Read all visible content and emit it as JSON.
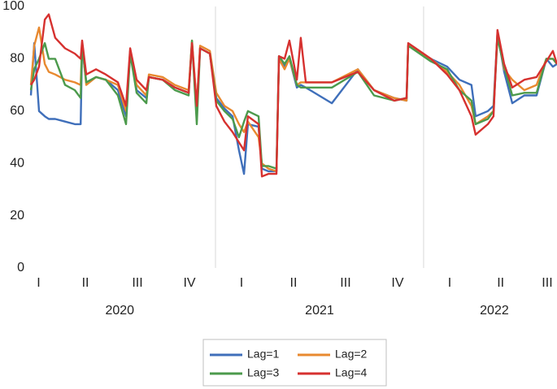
{
  "chart_data": {
    "type": "line",
    "x": [
      2020.113,
      2020.129,
      2020.152,
      2020.18,
      2020.199,
      2020.23,
      2020.277,
      2020.324,
      2020.352,
      2020.359,
      2020.379,
      2020.426,
      2020.473,
      2020.531,
      2020.57,
      2020.59,
      2020.621,
      2020.668,
      2020.68,
      2020.746,
      2020.805,
      2020.871,
      2020.887,
      2020.91,
      2020.926,
      2020.973,
      2021.004,
      2021.043,
      2021.082,
      2021.113,
      2021.137,
      2021.156,
      2021.207,
      2021.223,
      2021.254,
      2021.293,
      2021.305,
      2021.332,
      2021.355,
      2021.391,
      2021.41,
      2021.434,
      2021.559,
      2021.684,
      2021.762,
      2021.859,
      2021.918,
      2021.926,
      2022.035,
      2022.113,
      2022.172,
      2022.23,
      2022.25,
      2022.309,
      2022.336,
      2022.355,
      2022.387,
      2022.426,
      2022.484,
      2022.543,
      2022.59,
      2022.621,
      2022.641
    ],
    "series": [
      {
        "name": "Lag=1",
        "color": "#3f6fba",
        "values": [
          66,
          86,
          60,
          58,
          57,
          57,
          56,
          55,
          55,
          85,
          71,
          73,
          72,
          68,
          58,
          83,
          68,
          65,
          73,
          72,
          69,
          67,
          86,
          60,
          84,
          82,
          65,
          61,
          58,
          45,
          36,
          55,
          54,
          38,
          37,
          37,
          81,
          77,
          80,
          69,
          70,
          69,
          63,
          76,
          68,
          65,
          64,
          85,
          80,
          77,
          72,
          70,
          58,
          60,
          62,
          90,
          75,
          63,
          66,
          66,
          80,
          77,
          78
        ]
      },
      {
        "name": "Lag=2",
        "color": "#e8892f",
        "values": [
          70,
          85,
          92,
          78,
          75,
          74,
          72,
          71,
          70,
          86,
          70,
          73,
          72,
          70,
          60,
          83,
          70,
          66,
          74,
          73,
          70,
          68,
          87,
          62,
          85,
          83,
          67,
          62,
          60,
          55,
          52,
          56,
          50,
          40,
          38,
          37,
          80,
          76,
          80,
          70,
          71,
          71,
          71,
          76,
          68,
          65,
          64,
          85,
          80,
          75,
          70,
          62,
          55,
          58,
          60,
          90,
          76,
          72,
          68,
          70,
          80,
          80,
          78
        ]
      },
      {
        "name": "Lag=3",
        "color": "#4c9a4c",
        "values": [
          68,
          76,
          80,
          86,
          80,
          80,
          70,
          68,
          65,
          86,
          71,
          73,
          72,
          66,
          55,
          82,
          67,
          63,
          73,
          72,
          68,
          66,
          87,
          55,
          84,
          82,
          64,
          60,
          57,
          50,
          56,
          60,
          58,
          39,
          39,
          38,
          81,
          78,
          81,
          70,
          69,
          69,
          69,
          75,
          66,
          64,
          65,
          85,
          79,
          76,
          68,
          64,
          55,
          57,
          60,
          88,
          77,
          66,
          67,
          67,
          80,
          80,
          78
        ]
      },
      {
        "name": "Lag=4",
        "color": "#d6312f",
        "values": [
          70,
          72,
          77,
          95,
          97,
          88,
          84,
          82,
          80,
          87,
          74,
          76,
          74,
          71,
          62,
          84,
          72,
          68,
          73,
          72,
          69,
          67,
          86,
          62,
          84,
          82,
          62,
          56,
          52,
          48,
          45,
          58,
          55,
          35,
          36,
          36,
          81,
          80,
          87,
          72,
          88,
          71,
          71,
          75,
          68,
          64,
          65,
          86,
          80,
          74,
          68,
          58,
          51,
          55,
          58,
          91,
          78,
          69,
          72,
          73,
          79,
          83,
          78
        ]
      }
    ],
    "xlim": [
      2020.113,
      2022.641
    ],
    "xticks": [
      {
        "value": 2020.15,
        "label": "I"
      },
      {
        "value": 2020.375,
        "label": "II"
      },
      {
        "value": 2020.625,
        "label": "III"
      },
      {
        "value": 2020.875,
        "label": "IV"
      },
      {
        "value": 2021.125,
        "label": "I"
      },
      {
        "value": 2021.375,
        "label": "II"
      },
      {
        "value": 2021.625,
        "label": "III"
      },
      {
        "value": 2021.875,
        "label": "IV"
      },
      {
        "value": 2022.125,
        "label": "I"
      },
      {
        "value": 2022.37,
        "label": "II"
      },
      {
        "value": 2022.594,
        "label": "III"
      }
    ],
    "xgroup_ticks": [
      {
        "value": 2020.54,
        "label": "2020"
      },
      {
        "value": 2021.5,
        "label": "2021"
      },
      {
        "value": 2022.34,
        "label": "2022"
      }
    ],
    "xgrid": [
      2021,
      2022
    ],
    "ylim": [
      0,
      100
    ],
    "yticks": [
      0,
      20,
      40,
      60,
      80,
      100
    ],
    "legend": "bottom"
  }
}
